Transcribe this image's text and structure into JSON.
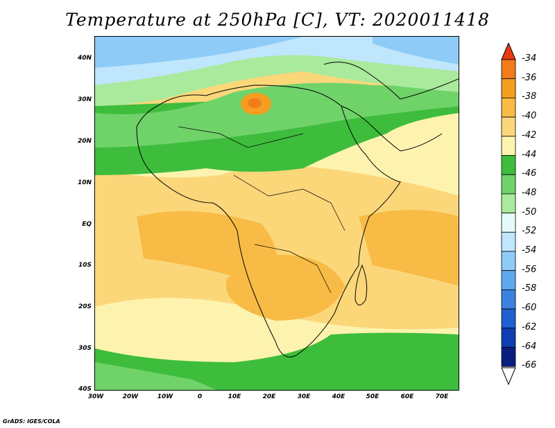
{
  "title": "Temperature at 250hPa [C], VT: 2020011418",
  "footer": "GrADS: IGES/COLA",
  "map": {
    "region": "Africa",
    "lat_labels": [
      "40N",
      "30N",
      "20N",
      "10N",
      "EQ",
      "10S",
      "20S",
      "30S",
      "40S"
    ],
    "lon_labels": [
      "30W",
      "20W",
      "10W",
      "0",
      "10E",
      "20E",
      "30E",
      "40E",
      "50E",
      "60E",
      "70E"
    ],
    "lat_range": [
      -40,
      43
    ],
    "lon_range": [
      -30,
      75
    ]
  },
  "colorbar": {
    "labels": [
      "-34",
      "-36",
      "-38",
      "-40",
      "-42",
      "-44",
      "-46",
      "-48",
      "-50",
      "-52",
      "-54",
      "-56",
      "-58",
      "-60",
      "-62",
      "-64",
      "-66"
    ],
    "colors": [
      "#e8541f",
      "#f27b1c",
      "#f59e20",
      "#f8bb45",
      "#fbd77a",
      "#fdf3ae",
      "#3ebd3c",
      "#6fd36a",
      "#a9ea9c",
      "#e5fbf9",
      "#bfe6fc",
      "#8ecbf6",
      "#5fa9ee",
      "#3b82e0",
      "#1f5fd0",
      "#0f3fb0",
      "#0a1e80"
    ],
    "top_arrow_color": "#e83a12",
    "bottom_arrow_color": "#ffffff"
  }
}
